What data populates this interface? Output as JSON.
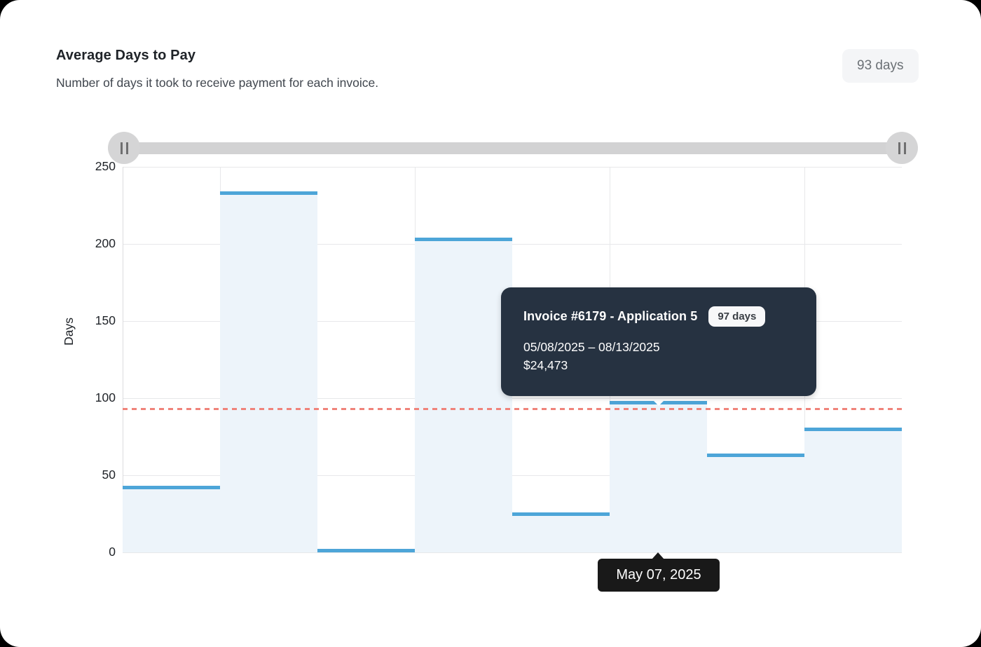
{
  "header": {
    "title": "Average Days to Pay",
    "subtitle": "Number of days it took to receive payment for each invoice.",
    "average_badge": "93 days"
  },
  "chart_data": {
    "type": "area",
    "subtype": "step-segments",
    "title": "Average Days to Pay",
    "ylabel": "Days",
    "ylim": [
      0,
      250
    ],
    "yticks": [
      0,
      50,
      100,
      150,
      200,
      250
    ],
    "values": [
      42,
      233,
      1,
      203,
      25,
      97,
      63,
      80
    ],
    "average_line": {
      "value": 93,
      "style": "dashed"
    },
    "highlighted_point": {
      "index": 5,
      "value": 97,
      "x_label": "May 07, 2025"
    },
    "grid": true,
    "legend": false
  },
  "invoice_tooltip": {
    "title": "Invoice #6179 - Application 5",
    "badge": "97 days",
    "date_range": "05/08/2025 – 08/13/2025",
    "amount": "$24,473"
  },
  "date_tooltip": {
    "label": "May 07, 2025"
  },
  "colors": {
    "bar_line": "#4da5d8",
    "bar_fill": "#edf4fa",
    "average_line": "#f0837a",
    "invoice_tooltip_bg": "#263241",
    "date_tooltip_bg": "#191919",
    "badge_bg": "#f4f5f7"
  }
}
